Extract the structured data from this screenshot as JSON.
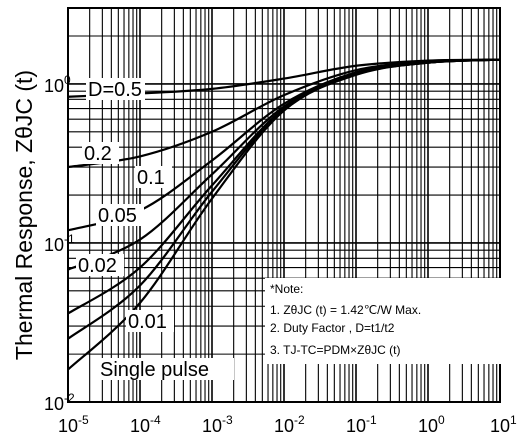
{
  "chart_data": {
    "type": "line",
    "title": "",
    "xlabel": "",
    "ylabel": "Thermal Response, ZθJC (t)",
    "xscale": "log",
    "yscale": "log",
    "xlim": [
      1e-05,
      10
    ],
    "ylim": [
      0.01,
      3
    ],
    "grid": true,
    "x_ticks": [
      {
        "base": "10",
        "exp": "-5",
        "value": 1e-05
      },
      {
        "base": "10",
        "exp": "-4",
        "value": 0.0001
      },
      {
        "base": "10",
        "exp": "-3",
        "value": 0.001
      },
      {
        "base": "10",
        "exp": "-2",
        "value": 0.01
      },
      {
        "base": "10",
        "exp": "-1",
        "value": 0.1
      },
      {
        "base": "10",
        "exp": "0",
        "value": 1
      },
      {
        "base": "10",
        "exp": "1",
        "value": 10
      }
    ],
    "y_ticks": [
      {
        "base": "10",
        "exp": "0",
        "value": 1
      },
      {
        "base": "10",
        "exp": "-1",
        "value": 0.1
      },
      {
        "base": "10",
        "exp": "-2",
        "value": 0.01
      }
    ],
    "series": [
      {
        "name": "D=0.5",
        "x": [
          1e-05,
          0.0001,
          0.001,
          0.01,
          0.1,
          1,
          10
        ],
        "y": [
          0.83,
          0.87,
          0.93,
          1.08,
          1.3,
          1.4,
          1.42
        ]
      },
      {
        "name": "0.2",
        "x": [
          1e-05,
          0.0001,
          0.001,
          0.01,
          0.1,
          1,
          10
        ],
        "y": [
          0.3,
          0.35,
          0.5,
          0.85,
          1.22,
          1.38,
          1.42
        ]
      },
      {
        "name": "0.1",
        "x": [
          1e-05,
          0.0001,
          0.001,
          0.01,
          0.1,
          1,
          10
        ],
        "y": [
          0.12,
          0.16,
          0.33,
          0.75,
          1.18,
          1.37,
          1.42
        ]
      },
      {
        "name": "0.05",
        "x": [
          1e-05,
          0.0001,
          0.001,
          0.01,
          0.1,
          1,
          10
        ],
        "y": [
          0.068,
          0.105,
          0.27,
          0.72,
          1.16,
          1.36,
          1.42
        ]
      },
      {
        "name": "0.02",
        "x": [
          1e-05,
          0.0001,
          0.001,
          0.01,
          0.1,
          1,
          10
        ],
        "y": [
          0.036,
          0.07,
          0.23,
          0.7,
          1.15,
          1.36,
          1.42
        ]
      },
      {
        "name": "0.01",
        "x": [
          1e-05,
          0.0001,
          0.001,
          0.01,
          0.1,
          1,
          10
        ],
        "y": [
          0.025,
          0.054,
          0.21,
          0.69,
          1.15,
          1.36,
          1.42
        ]
      },
      {
        "name": "Single pulse",
        "x": [
          1e-05,
          0.0001,
          0.001,
          0.01,
          0.1,
          1,
          10
        ],
        "y": [
          0.016,
          0.042,
          0.19,
          0.68,
          1.14,
          1.36,
          1.42
        ]
      }
    ],
    "curve_labels": [
      {
        "text": "D=0.5"
      },
      {
        "text": "0.2"
      },
      {
        "text": "0.1"
      },
      {
        "text": "0.05"
      },
      {
        "text": "0.02"
      },
      {
        "text": "0.01"
      },
      {
        "text": "Single pulse"
      }
    ],
    "note": {
      "title": "*Note:",
      "line1": "1.  ZθJC (t) = 1.42℃/W Max.",
      "line2": "2. Duty Factor , D=t1/t2",
      "line3": "3. TJ-TC=PDM×ZθJC (t)"
    }
  }
}
